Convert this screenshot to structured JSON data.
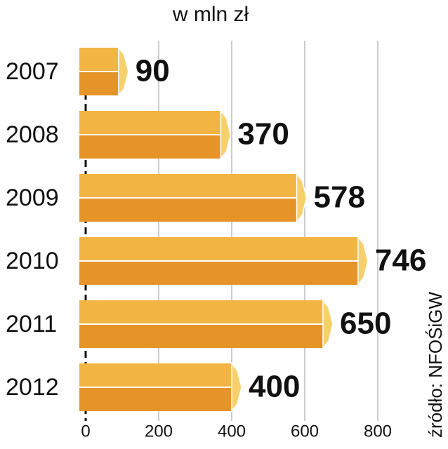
{
  "chart_data": {
    "type": "bar",
    "orientation": "horizontal",
    "title": "w mln zł",
    "categories": [
      "2007",
      "2008",
      "2009",
      "2010",
      "2011",
      "2012"
    ],
    "values": [
      90,
      370,
      578,
      746,
      650,
      400
    ],
    "color": "#f2b443",
    "xlim": [
      0,
      800
    ],
    "xticks": [
      0,
      200,
      400,
      600,
      800
    ],
    "grid": true,
    "source": "źródło: NFOŚiGW"
  }
}
